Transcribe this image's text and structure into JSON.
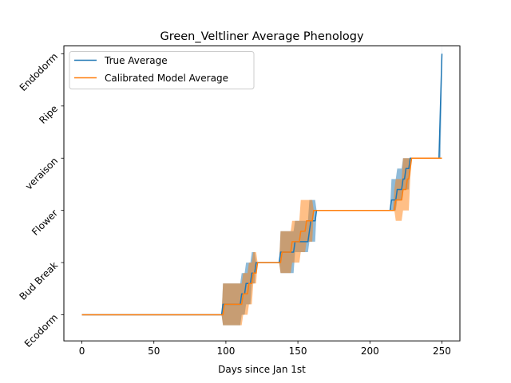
{
  "chart_data": {
    "type": "line",
    "title": "Green_Veltliner Average Phenology",
    "xlabel": "Days since Jan 1st",
    "ylabel": "",
    "xlim": [
      -12.5,
      262.5
    ],
    "ylim": [
      -0.5,
      5.15
    ],
    "xticks": [
      0,
      50,
      100,
      150,
      200,
      250
    ],
    "yticks": [
      0,
      1,
      2,
      3,
      4,
      5
    ],
    "ytick_labels": [
      "Ecodorm",
      "Bud Break",
      "Flower",
      "veraison",
      "Ripe",
      "Endodorm"
    ],
    "legend_position": "upper-left",
    "grid": false,
    "series": [
      {
        "name": "True Average",
        "color": "#1f77b4",
        "points": [
          [
            0,
            0
          ],
          [
            97,
            0
          ],
          [
            98,
            0.2
          ],
          [
            110,
            0.2
          ],
          [
            111,
            0.4
          ],
          [
            113,
            0.4
          ],
          [
            114,
            0.6
          ],
          [
            117,
            0.6
          ],
          [
            118,
            0.8
          ],
          [
            120,
            0.8
          ],
          [
            121,
            1.0
          ],
          [
            137,
            1.0
          ],
          [
            138,
            1.2
          ],
          [
            147,
            1.2
          ],
          [
            148,
            1.4
          ],
          [
            157,
            1.4
          ],
          [
            158,
            1.6
          ],
          [
            159,
            1.8
          ],
          [
            162,
            1.8
          ],
          [
            163,
            2.0
          ],
          [
            214,
            2.0
          ],
          [
            215,
            2.2
          ],
          [
            218,
            2.2
          ],
          [
            219,
            2.4
          ],
          [
            222,
            2.4
          ],
          [
            223,
            2.6
          ],
          [
            224,
            2.6
          ],
          [
            225,
            2.8
          ],
          [
            227,
            2.8
          ],
          [
            228,
            3.0
          ],
          [
            248,
            3.0
          ],
          [
            250,
            5.0
          ]
        ],
        "band": [
          [
            97,
            0,
            0
          ],
          [
            98,
            -0.2,
            0.6
          ],
          [
            110,
            -0.2,
            0.6
          ],
          [
            111,
            0,
            0.8
          ],
          [
            113,
            0,
            0.8
          ],
          [
            114,
            0.2,
            1.0
          ],
          [
            117,
            0.2,
            1.0
          ],
          [
            118,
            0.6,
            1.2
          ],
          [
            120,
            0.6,
            1.2
          ],
          [
            121,
            1.0,
            1.0
          ],
          [
            137,
            1.0,
            1.0
          ],
          [
            138,
            0.8,
            1.6
          ],
          [
            147,
            0.8,
            1.6
          ],
          [
            148,
            1.2,
            1.8
          ],
          [
            157,
            1.2,
            1.8
          ],
          [
            158,
            1.4,
            2.2
          ],
          [
            162,
            1.4,
            2.2
          ],
          [
            163,
            2.0,
            2.0
          ],
          [
            214,
            2.0,
            2.0
          ],
          [
            215,
            2.0,
            2.6
          ],
          [
            218,
            2.0,
            2.6
          ],
          [
            219,
            2.2,
            2.8
          ],
          [
            222,
            2.2,
            2.8
          ],
          [
            223,
            2.4,
            3.0
          ],
          [
            227,
            2.4,
            3.0
          ],
          [
            228,
            3.0,
            3.0
          ],
          [
            248,
            3.0,
            3.0
          ],
          [
            249,
            3.0,
            3.8
          ],
          [
            250,
            4.6,
            5.2
          ]
        ]
      },
      {
        "name": "Calibrated Model Average",
        "color": "#ff7f0e",
        "points": [
          [
            0,
            0
          ],
          [
            98,
            0
          ],
          [
            99,
            0.2
          ],
          [
            111,
            0.2
          ],
          [
            112,
            0.4
          ],
          [
            115,
            0.4
          ],
          [
            116,
            0.6
          ],
          [
            118,
            0.6
          ],
          [
            119,
            0.8
          ],
          [
            121,
            0.8
          ],
          [
            122,
            1.0
          ],
          [
            138,
            1.0
          ],
          [
            139,
            1.2
          ],
          [
            145,
            1.2
          ],
          [
            146,
            1.4
          ],
          [
            151,
            1.4
          ],
          [
            152,
            1.6
          ],
          [
            155,
            1.6
          ],
          [
            156,
            1.8
          ],
          [
            160,
            1.8
          ],
          [
            161,
            2.0
          ],
          [
            214,
            2.0
          ],
          [
            217,
            2.0
          ],
          [
            218,
            2.2
          ],
          [
            222,
            2.2
          ],
          [
            223,
            2.4
          ],
          [
            225,
            2.4
          ],
          [
            226,
            2.6
          ],
          [
            227,
            2.6
          ],
          [
            228,
            2.8
          ],
          [
            229,
            3.0
          ],
          [
            250,
            3.0
          ]
        ],
        "band": [
          [
            97,
            0,
            0
          ],
          [
            98,
            -0.2,
            0.6
          ],
          [
            111,
            -0.2,
            0.6
          ],
          [
            112,
            0,
            0.8
          ],
          [
            115,
            0,
            0.8
          ],
          [
            116,
            0.2,
            1.0
          ],
          [
            118,
            0.2,
            1.0
          ],
          [
            119,
            0.6,
            1.2
          ],
          [
            121,
            0.6,
            1.2
          ],
          [
            122,
            1.0,
            1.0
          ],
          [
            137,
            1.0,
            1.0
          ],
          [
            138,
            0.8,
            1.6
          ],
          [
            145,
            0.8,
            1.6
          ],
          [
            146,
            1.0,
            1.8
          ],
          [
            151,
            1.0,
            1.8
          ],
          [
            152,
            1.2,
            2.2
          ],
          [
            155,
            1.2,
            2.2
          ],
          [
            156,
            1.4,
            2.2
          ],
          [
            160,
            1.4,
            2.2
          ],
          [
            161,
            2.0,
            2.0
          ],
          [
            216,
            2.0,
            2.0
          ],
          [
            217,
            2.0,
            2.4
          ],
          [
            218,
            1.8,
            2.6
          ],
          [
            222,
            1.8,
            2.6
          ],
          [
            223,
            2.0,
            3.0
          ],
          [
            227,
            2.0,
            3.0
          ],
          [
            228,
            2.6,
            3.0
          ],
          [
            229,
            3.0,
            3.0
          ]
        ]
      }
    ]
  }
}
